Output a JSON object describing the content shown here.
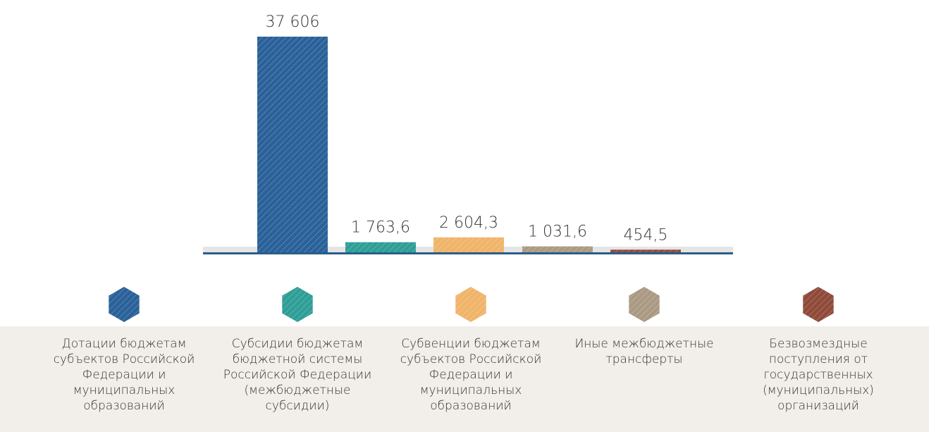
{
  "chart_data": {
    "type": "bar",
    "categories": [
      "Дотации бюджетам субъектов Российской Федерации и муниципальных образований",
      "Субсидии бюджетам бюджетной системы Российской Федерации (межбюджетные субсидии)",
      "Субвенции бюджетам субъектов Российской Федерации и муниципальных образований",
      "Иные межбюджетные трансферты",
      "Безвозмездные поступления от государственных (муниципальных) организаций"
    ],
    "values": [
      37606,
      1763.6,
      2604.3,
      1031.6,
      454.5
    ],
    "value_labels": [
      "37 606",
      "1 763,6",
      "2 604,3",
      "1 031,6",
      "454,5"
    ],
    "colors": [
      "#2a6199",
      "#2e9e96",
      "#f0b46a",
      "#aa9a83",
      "#8f4a3a"
    ]
  }
}
